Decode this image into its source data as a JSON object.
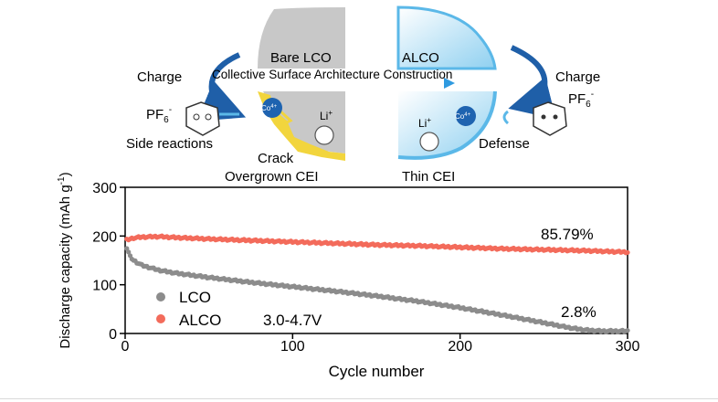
{
  "schematic": {
    "charge_label": "Charge",
    "bare_label": "Bare LCO",
    "alco_label": "ALCO",
    "process_label": "Collective Surface Architecture Construction",
    "pf6_main": "PF",
    "pf6_sub": "6",
    "pf6_sup": "-",
    "co_main": "Co",
    "co_sup": "4+",
    "li_main": "Li",
    "li_sup": "+",
    "side_reactions": "Side reactions",
    "crack": "Crack",
    "overgrown_cei": "Overgrown CEI",
    "thin_cei": "Thin CEI",
    "defense": "Defense",
    "colors": {
      "arrow_blue": "#1f5fa8",
      "coating_yellow": "#f2d53d",
      "coating_blue": "#5bb8e8",
      "crystal_gray": "#c8c8c8",
      "co_ion": "#1e63b0"
    }
  },
  "chart_data": {
    "type": "scatter",
    "xlabel": "Cycle number",
    "ylabel_main": "Discharge capacity (mAh g",
    "ylabel_sup": "-1",
    "ylabel_close": ")",
    "xlim": [
      0,
      300
    ],
    "ylim": [
      0,
      300
    ],
    "xticks": [
      "0",
      "100",
      "200",
      "300"
    ],
    "yticks": [
      "0",
      "100",
      "200",
      "300"
    ],
    "grid": false,
    "legend_position": "bottom-left",
    "legend_condition": "3.0-4.7V",
    "series": [
      {
        "name": "LCO",
        "color": "#8c8c8c",
        "end_label": "2.8%",
        "points": [
          [
            1,
            175
          ],
          [
            3,
            158
          ],
          [
            5,
            150
          ],
          [
            10,
            140
          ],
          [
            20,
            130
          ],
          [
            30,
            124
          ],
          [
            50,
            115
          ],
          [
            75,
            105
          ],
          [
            100,
            96
          ],
          [
            125,
            87
          ],
          [
            150,
            77
          ],
          [
            175,
            66
          ],
          [
            200,
            53
          ],
          [
            225,
            38
          ],
          [
            250,
            22
          ],
          [
            265,
            12
          ],
          [
            275,
            7
          ],
          [
            285,
            5
          ],
          [
            300,
            5
          ]
        ]
      },
      {
        "name": "ALCO",
        "color": "#f36b5b",
        "end_label": "85.79%",
        "points": [
          [
            1,
            192
          ],
          [
            5,
            196
          ],
          [
            10,
            198
          ],
          [
            20,
            199
          ],
          [
            30,
            197
          ],
          [
            50,
            194
          ],
          [
            75,
            191
          ],
          [
            100,
            188
          ],
          [
            125,
            185
          ],
          [
            150,
            182
          ],
          [
            175,
            180
          ],
          [
            200,
            177
          ],
          [
            225,
            174
          ],
          [
            250,
            172
          ],
          [
            275,
            170
          ],
          [
            300,
            167
          ]
        ]
      }
    ]
  }
}
